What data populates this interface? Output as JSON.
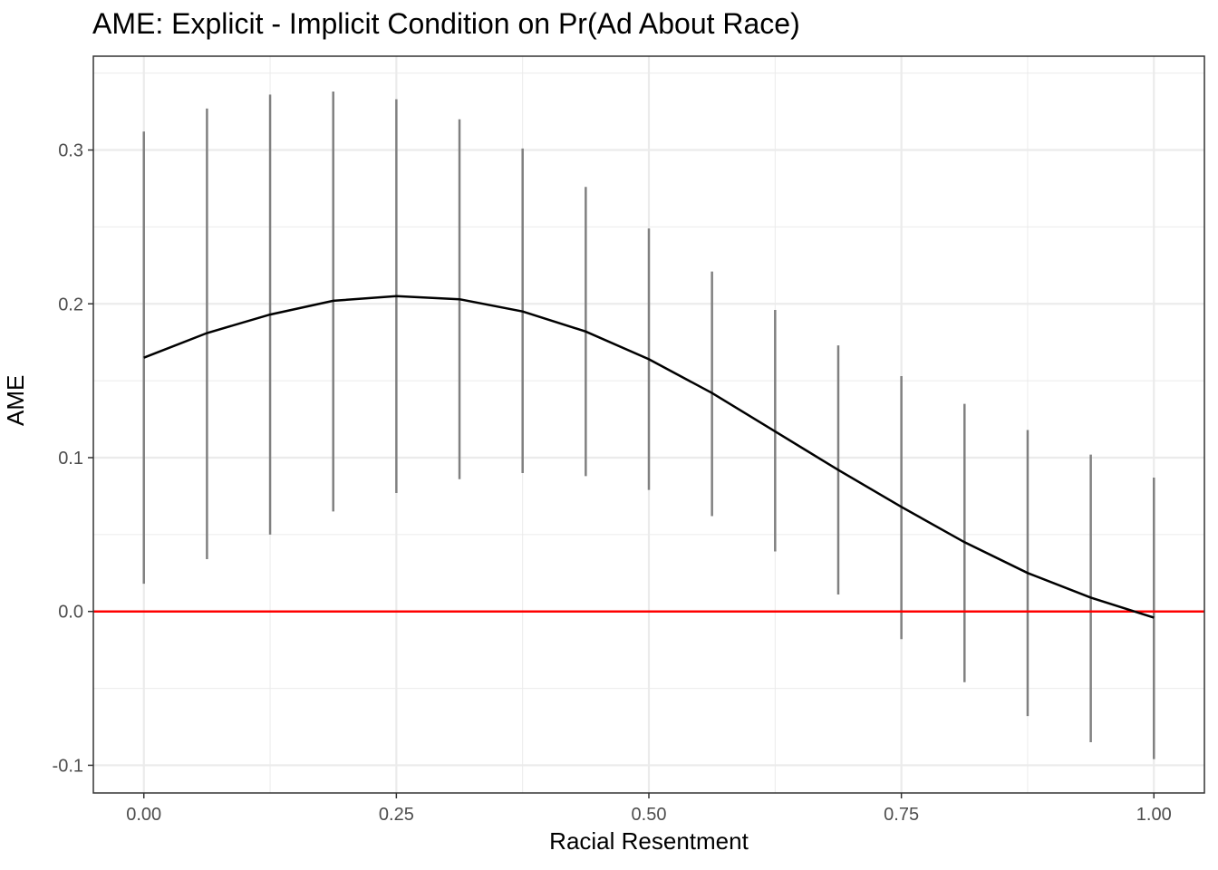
{
  "chart_data": {
    "type": "line",
    "title": "AME: Explicit - Implicit Condition on Pr(Ad About Race)",
    "xlabel": "Racial Resentment",
    "ylabel": "AME",
    "xlim": [
      -0.05,
      1.05
    ],
    "ylim": [
      -0.118,
      0.361
    ],
    "x_ticks": [
      0.0,
      0.25,
      0.5,
      0.75,
      1.0
    ],
    "x_tick_labels": [
      "0.00",
      "0.25",
      "0.50",
      "0.75",
      "1.00"
    ],
    "y_ticks": [
      -0.1,
      0.0,
      0.1,
      0.2,
      0.3
    ],
    "y_tick_labels": [
      "-0.1",
      "0.0",
      "0.1",
      "0.2",
      "0.3"
    ],
    "grid": true,
    "reference_line": {
      "y": 0.0,
      "color": "#ff0000"
    },
    "series": [
      {
        "x": [
          0.0,
          0.0625,
          0.125,
          0.1875,
          0.25,
          0.3125,
          0.375,
          0.4375,
          0.5,
          0.5625,
          0.625,
          0.6875,
          0.75,
          0.8125,
          0.875,
          0.9375,
          1.0
        ],
        "values": [
          0.165,
          0.181,
          0.193,
          0.202,
          0.205,
          0.203,
          0.195,
          0.182,
          0.164,
          0.142,
          0.117,
          0.092,
          0.068,
          0.045,
          0.025,
          0.009,
          -0.004
        ],
        "lower": [
          0.018,
          0.034,
          0.05,
          0.065,
          0.077,
          0.086,
          0.09,
          0.088,
          0.079,
          0.062,
          0.039,
          0.011,
          -0.018,
          -0.046,
          -0.068,
          -0.085,
          -0.096
        ],
        "upper": [
          0.312,
          0.327,
          0.336,
          0.338,
          0.333,
          0.32,
          0.301,
          0.276,
          0.249,
          0.221,
          0.196,
          0.173,
          0.153,
          0.135,
          0.118,
          0.102,
          0.087
        ],
        "color": "#000000",
        "errorbar_color": "#808080"
      }
    ]
  }
}
